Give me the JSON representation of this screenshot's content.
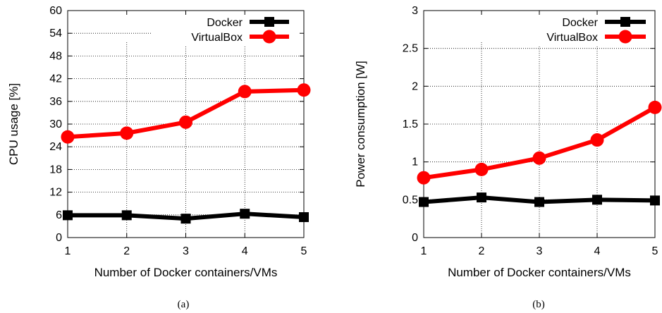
{
  "chart_data": [
    {
      "type": "line",
      "caption": "(a)",
      "xlabel": "Number of Docker containers/VMs",
      "ylabel": "CPU usage [%]",
      "x": [
        1,
        2,
        3,
        4,
        5
      ],
      "xticks": [
        "1",
        "2",
        "3",
        "4",
        "5"
      ],
      "xlim": [
        1,
        5
      ],
      "ylim": [
        0,
        60
      ],
      "yticks": [
        "0",
        "6",
        "12",
        "18",
        "24",
        "30",
        "36",
        "42",
        "48",
        "54",
        "60"
      ],
      "grid": true,
      "legend_position": "top-right",
      "series": [
        {
          "name": "Docker",
          "color": "#000000",
          "marker": "square",
          "values": [
            5.9,
            5.9,
            5.0,
            6.3,
            5.4
          ]
        },
        {
          "name": "VirtualBox",
          "color": "#ff0000",
          "marker": "circle",
          "values": [
            26.6,
            27.6,
            30.5,
            38.6,
            39.0
          ]
        }
      ]
    },
    {
      "type": "line",
      "caption": "(b)",
      "xlabel": "Number of Docker containers/VMs",
      "ylabel": "Power consumption [W]",
      "x": [
        1,
        2,
        3,
        4,
        5
      ],
      "xticks": [
        "1",
        "2",
        "3",
        "4",
        "5"
      ],
      "xlim": [
        1,
        5
      ],
      "ylim": [
        0,
        3
      ],
      "yticks": [
        "0",
        "0.5",
        "1",
        "1.5",
        "2",
        "2.5",
        "3"
      ],
      "grid": true,
      "legend_position": "top-right",
      "series": [
        {
          "name": "Docker",
          "color": "#000000",
          "marker": "square",
          "values": [
            0.47,
            0.53,
            0.47,
            0.5,
            0.49
          ]
        },
        {
          "name": "VirtualBox",
          "color": "#ff0000",
          "marker": "circle",
          "values": [
            0.79,
            0.9,
            1.05,
            1.29,
            1.72
          ]
        }
      ]
    }
  ]
}
